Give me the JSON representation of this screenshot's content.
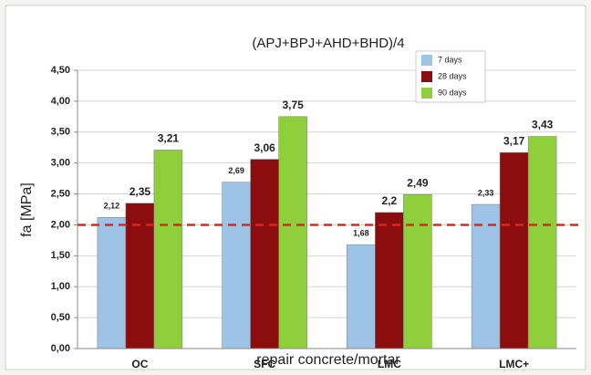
{
  "chart_data": {
    "type": "bar",
    "title": "(APJ+BPJ+AHD+BHD)/4",
    "y_label": "fa [MPa]",
    "x_label": "repair concrete/mortar",
    "categories": [
      "OC",
      "SFC",
      "LMC",
      "LMC+"
    ],
    "series": [
      {
        "name": "7 days",
        "color": "#9dc3e6",
        "values": [
          2.12,
          2.69,
          1.68,
          2.33
        ],
        "value_labels": [
          "2,12",
          "2,69",
          "1,68",
          "2,33"
        ]
      },
      {
        "name": "28 days",
        "color": "#8b0d0d",
        "values": [
          2.35,
          3.06,
          2.2,
          3.17
        ],
        "value_labels": [
          "2,35",
          "3,06",
          "2,2",
          "3,17"
        ]
      },
      {
        "name": "90 days",
        "color": "#8fcf3c",
        "values": [
          3.21,
          3.75,
          2.49,
          3.43
        ],
        "value_labels": [
          "3,21",
          "3,75",
          "2,49",
          "3,43"
        ]
      }
    ],
    "ylim": [
      0,
      4.5
    ],
    "yticks": [
      {
        "value": 0,
        "label": "0,00"
      },
      {
        "value": 0.5,
        "label": "0,50"
      },
      {
        "value": 1,
        "label": "1,00"
      },
      {
        "value": 1.5,
        "label": "1,50"
      },
      {
        "value": 2,
        "label": "2,00"
      },
      {
        "value": 2.5,
        "label": "2,50"
      },
      {
        "value": 3,
        "label": "3,00"
      },
      {
        "value": 3.5,
        "label": "3,50"
      },
      {
        "value": 4,
        "label": "4,00"
      },
      {
        "value": 4.5,
        "label": "4,50"
      }
    ],
    "grid": true,
    "reference_line": {
      "value": 2,
      "color": "#e0261c"
    }
  }
}
